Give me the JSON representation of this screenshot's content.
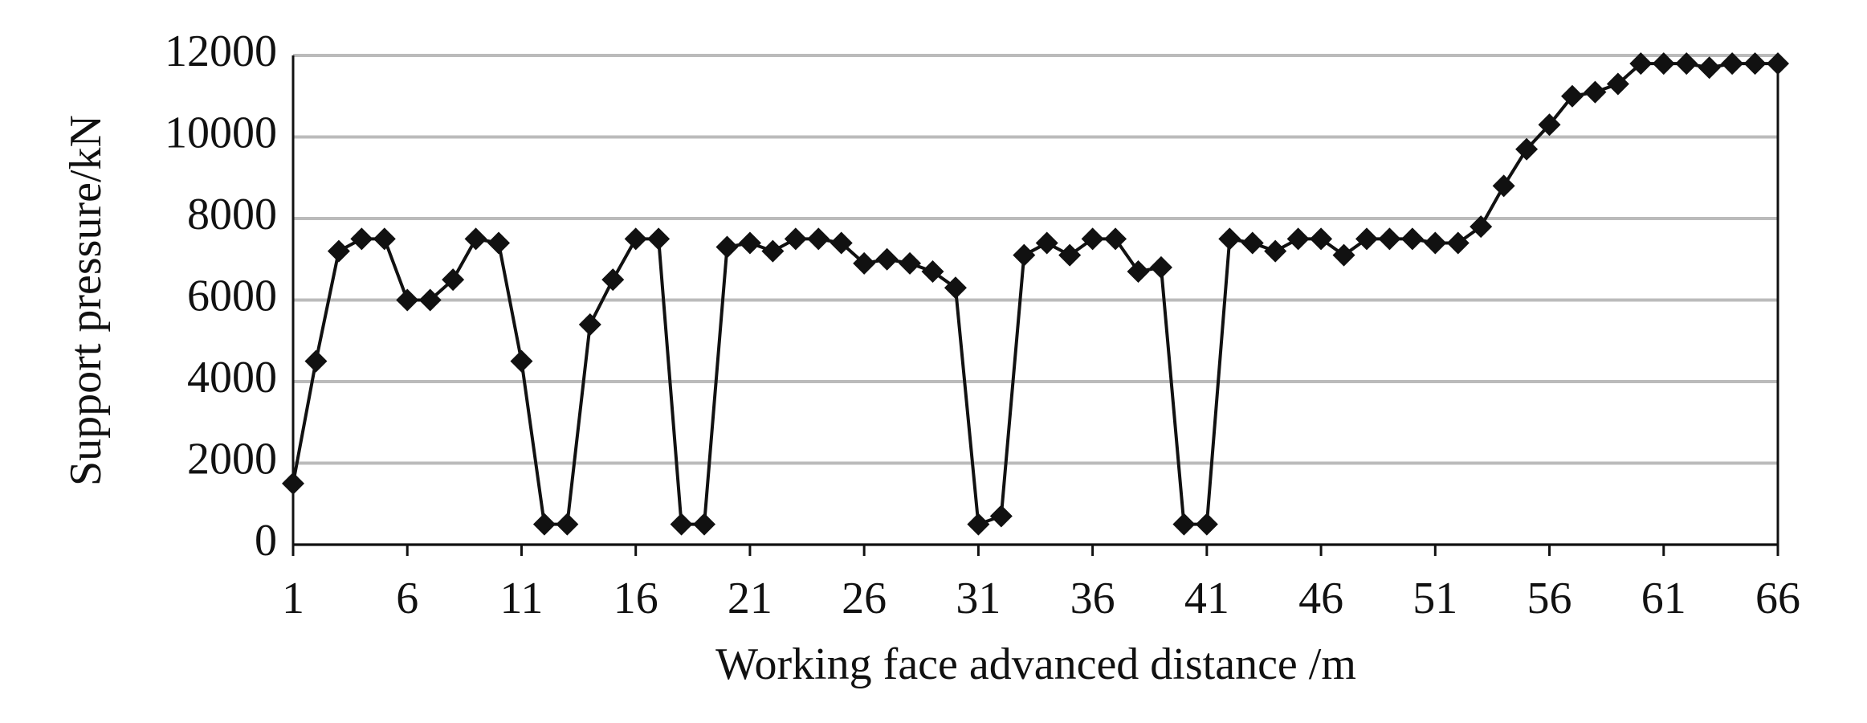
{
  "chart_data": {
    "type": "line",
    "x_label": "Working face advanced distance /m",
    "y_label": "Support pressure/kN",
    "x": [
      1,
      2,
      3,
      4,
      5,
      6,
      7,
      8,
      9,
      10,
      11,
      12,
      13,
      14,
      15,
      16,
      17,
      18,
      19,
      20,
      21,
      22,
      23,
      24,
      25,
      26,
      27,
      28,
      29,
      30,
      31,
      32,
      33,
      34,
      35,
      36,
      37,
      38,
      39,
      40,
      41,
      42,
      43,
      44,
      45,
      46,
      47,
      48,
      49,
      50,
      51,
      52,
      53,
      54,
      55,
      56,
      57,
      58,
      59,
      60,
      61,
      62,
      63,
      64,
      65,
      66
    ],
    "series": [
      {
        "color": "#111111",
        "values": [
          1500,
          4500,
          7200,
          7500,
          7500,
          6000,
          6000,
          6500,
          7500,
          7400,
          4500,
          500,
          500,
          5400,
          6500,
          7500,
          7500,
          500,
          500,
          7300,
          7400,
          7200,
          7500,
          7500,
          7400,
          6900,
          7000,
          6900,
          6700,
          6300,
          500,
          700,
          7100,
          7400,
          7100,
          7500,
          7500,
          6700,
          6800,
          500,
          500,
          7500,
          7400,
          7200,
          7500,
          7500,
          7100,
          7500,
          7500,
          7500,
          7400,
          7400,
          7800,
          8800,
          9700,
          10300,
          11000,
          11100,
          11300,
          11800,
          11800,
          11800,
          11700,
          11800,
          11800,
          11800
        ]
      }
    ],
    "xlim": [
      1,
      66
    ],
    "xticks": [
      1,
      6,
      11,
      16,
      21,
      26,
      31,
      36,
      41,
      46,
      51,
      56,
      61,
      66
    ],
    "ylim": [
      0,
      12000
    ],
    "yticks": [
      0,
      2000,
      4000,
      6000,
      8000,
      10000,
      12000
    ],
    "grid": true
  }
}
